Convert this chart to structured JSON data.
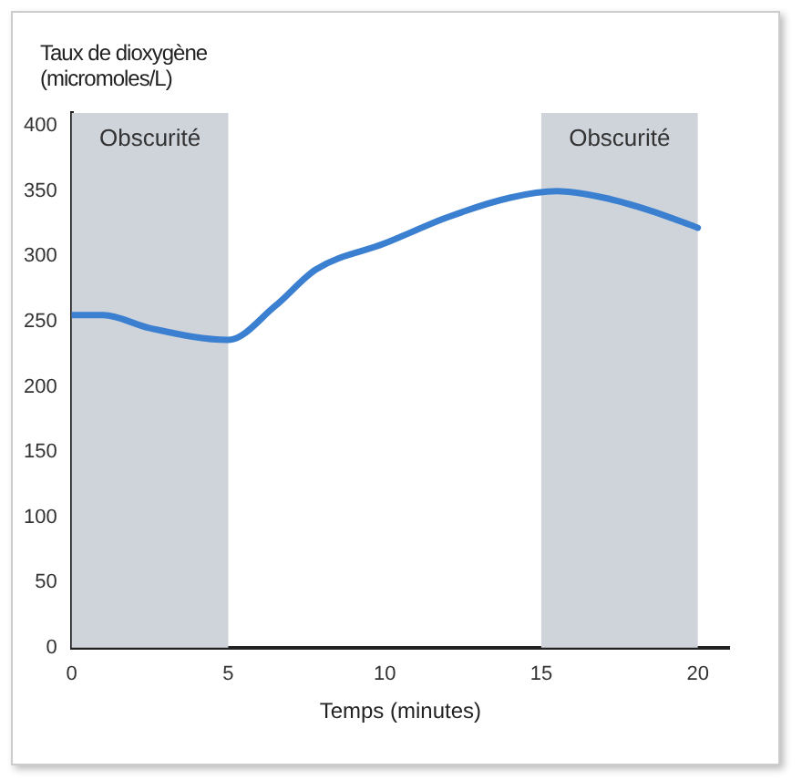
{
  "chart_data": {
    "type": "line",
    "xlabel": "Temps (minutes)",
    "ylabel": "Taux de dioxygène (micromoles/L)",
    "x": [
      0,
      1,
      2.5,
      5,
      6.5,
      7.8,
      10,
      12,
      14,
      15.5,
      17,
      18.5,
      20
    ],
    "series": [
      {
        "color": "#3a7fd0",
        "values": [
          255,
          255,
          245,
          236,
          262,
          290,
          310,
          330,
          345,
          350,
          345,
          335,
          322
        ]
      }
    ],
    "xlim": [
      0,
      21
    ],
    "xticks": [
      0,
      5,
      10,
      15,
      20
    ],
    "ylim": [
      0,
      410
    ],
    "yticks": [
      0,
      50,
      100,
      150,
      200,
      250,
      300,
      350,
      400
    ],
    "bands": [
      {
        "axis": "x",
        "from": 0,
        "to": 5,
        "label": "Obscurité",
        "color": "#cfd4db"
      },
      {
        "axis": "x",
        "from": 15,
        "to": 20,
        "label": "Obscurité",
        "color": "#cfd4db"
      }
    ],
    "grid": false,
    "legend": false,
    "marker": "none",
    "line_style": "solid"
  }
}
